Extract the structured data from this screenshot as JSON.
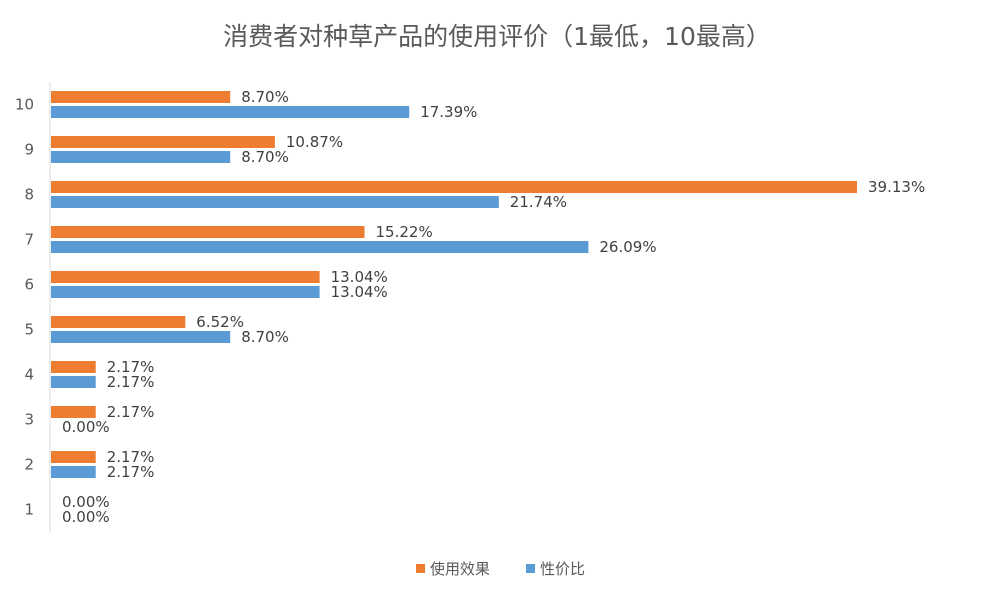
{
  "chart_data": {
    "type": "bar",
    "orientation": "horizontal",
    "title": "消费者对种草产品的使用评价（1最低，10最高）",
    "xlabel": "",
    "ylabel": "",
    "categories": [
      "10",
      "9",
      "8",
      "7",
      "6",
      "5",
      "4",
      "3",
      "2",
      "1"
    ],
    "series": [
      {
        "name": "使用效果",
        "color": "#ED7D31",
        "values": [
          8.7,
          10.87,
          39.13,
          15.22,
          13.04,
          6.52,
          2.17,
          2.17,
          2.17,
          0.0
        ],
        "labels": [
          "8.70%",
          "10.87%",
          "39.13%",
          "15.22%",
          "13.04%",
          "6.52%",
          "2.17%",
          "2.17%",
          "2.17%",
          "0.00%"
        ]
      },
      {
        "name": "性价比",
        "color": "#5B9BD5",
        "values": [
          17.39,
          8.7,
          21.74,
          26.09,
          13.04,
          8.7,
          2.17,
          0.0,
          2.17,
          0.0
        ],
        "labels": [
          "17.39%",
          "8.70%",
          "21.74%",
          "26.09%",
          "13.04%",
          "8.70%",
          "2.17%",
          "0.00%",
          "2.17%",
          "0.00%"
        ]
      }
    ],
    "xlim": [
      0,
      40
    ],
    "grid": false,
    "legend_position": "bottom"
  }
}
